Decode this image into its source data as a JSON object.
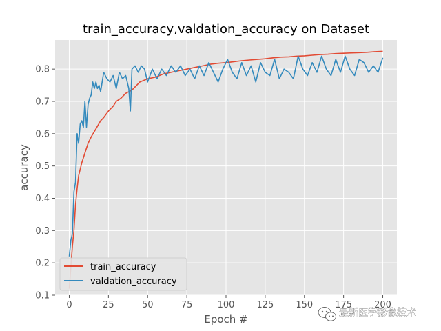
{
  "chart_data": {
    "type": "line",
    "title": "train_accuracy,valdation_accuracy on Dataset",
    "xlabel": "Epoch #",
    "ylabel": "accuracy",
    "xlim": [
      -9,
      209
    ],
    "ylim": [
      0.1,
      0.89
    ],
    "xticks": [
      0,
      25,
      50,
      75,
      100,
      125,
      150,
      175,
      200
    ],
    "yticks": [
      0.1,
      0.2,
      0.3,
      0.4,
      0.5,
      0.6,
      0.7,
      0.8
    ],
    "grid": true,
    "legend_position": "lower-left",
    "series": [
      {
        "name": "train_accuracy",
        "color": "#e24a33",
        "x": [
          0,
          2,
          3,
          4,
          5,
          6,
          8,
          10,
          12,
          14,
          17,
          20,
          22,
          25,
          28,
          30,
          33,
          36,
          40,
          45,
          50,
          55,
          60,
          65,
          70,
          75,
          80,
          85,
          90,
          95,
          100,
          105,
          110,
          115,
          120,
          125,
          130,
          135,
          140,
          145,
          150,
          155,
          160,
          165,
          170,
          175,
          180,
          185,
          190,
          195,
          200
        ],
        "y": [
          0.12,
          0.25,
          0.3,
          0.38,
          0.43,
          0.47,
          0.51,
          0.54,
          0.57,
          0.59,
          0.615,
          0.64,
          0.65,
          0.67,
          0.685,
          0.7,
          0.71,
          0.725,
          0.735,
          0.76,
          0.77,
          0.775,
          0.785,
          0.79,
          0.795,
          0.8,
          0.805,
          0.81,
          0.815,
          0.818,
          0.82,
          0.823,
          0.826,
          0.828,
          0.83,
          0.832,
          0.835,
          0.837,
          0.838,
          0.84,
          0.841,
          0.843,
          0.845,
          0.846,
          0.848,
          0.849,
          0.85,
          0.851,
          0.852,
          0.854,
          0.855
        ]
      },
      {
        "name": "valdation_accuracy",
        "color": "#348abd",
        "x": [
          0,
          1,
          2,
          3,
          4,
          5,
          6,
          7,
          8,
          9,
          10,
          11,
          12,
          13,
          14,
          15,
          16,
          17,
          18,
          19,
          20,
          22,
          24,
          26,
          28,
          30,
          32,
          34,
          36,
          38,
          39,
          40,
          42,
          44,
          46,
          48,
          50,
          53,
          56,
          59,
          62,
          65,
          68,
          71,
          74,
          77,
          80,
          83,
          86,
          89,
          92,
          95,
          98,
          101,
          104,
          107,
          110,
          113,
          116,
          119,
          122,
          125,
          128,
          131,
          134,
          137,
          140,
          143,
          146,
          149,
          152,
          155,
          158,
          161,
          164,
          167,
          170,
          173,
          176,
          179,
          182,
          185,
          188,
          191,
          194,
          197,
          200
        ],
        "y": [
          0.22,
          0.27,
          0.29,
          0.42,
          0.45,
          0.6,
          0.57,
          0.63,
          0.64,
          0.62,
          0.7,
          0.62,
          0.69,
          0.71,
          0.72,
          0.76,
          0.74,
          0.76,
          0.74,
          0.75,
          0.73,
          0.79,
          0.77,
          0.76,
          0.78,
          0.74,
          0.79,
          0.77,
          0.78,
          0.74,
          0.67,
          0.8,
          0.81,
          0.79,
          0.81,
          0.8,
          0.76,
          0.8,
          0.77,
          0.8,
          0.78,
          0.81,
          0.79,
          0.81,
          0.78,
          0.8,
          0.77,
          0.81,
          0.78,
          0.82,
          0.79,
          0.76,
          0.8,
          0.83,
          0.79,
          0.77,
          0.82,
          0.78,
          0.81,
          0.76,
          0.82,
          0.79,
          0.78,
          0.83,
          0.77,
          0.8,
          0.79,
          0.77,
          0.84,
          0.8,
          0.78,
          0.82,
          0.79,
          0.84,
          0.8,
          0.78,
          0.83,
          0.79,
          0.84,
          0.8,
          0.78,
          0.83,
          0.82,
          0.79,
          0.81,
          0.79,
          0.835
        ]
      }
    ]
  },
  "watermark": {
    "text": "最新医学影像技术",
    "icon": "wechat-icon"
  },
  "colors": {
    "plot_background": "#e5e5e5",
    "grid": "#ffffff",
    "page_background": "#ffffff"
  }
}
